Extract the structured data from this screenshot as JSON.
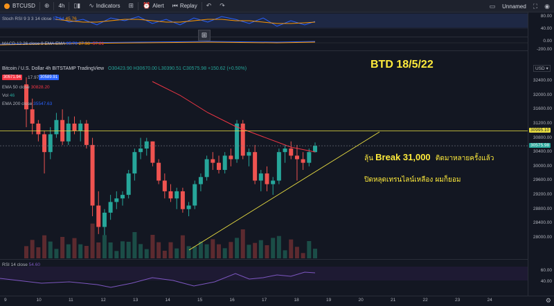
{
  "toolbar": {
    "symbol": "BTCUSD",
    "interval": "4h",
    "indicators": "Indicators",
    "alert": "Alert",
    "replay": "Replay",
    "layout_name": "Unnamed"
  },
  "stoch": {
    "legend": "Stoch RSI 9 3 3 14 close",
    "k": "51.64",
    "d": "45.76",
    "scale": [
      "80.00",
      "40.00"
    ]
  },
  "macd": {
    "legend": "MACD 12 26 close 9 EMA EMA",
    "v1": "95.76",
    "v2": "27.98",
    "v3": "-57.81",
    "scale": [
      "0.00",
      "-200.00"
    ]
  },
  "main": {
    "title": "Bitcoin / U.S. Dollar  4h  BITSTAMP  TradingView",
    "ohlc": "O30423.90 H30670.00 L30390.51 C30575.98 +150.62 (+0.50%)",
    "bid": "30571.94",
    "spread": "17.97",
    "ask": "30589.91",
    "ema50": "EMA 50 close",
    "ema50_val": "30828.20",
    "vol": "Vol",
    "vol_val": "46",
    "ema200": "EMA 200 close",
    "ema200_val": "35547.63"
  },
  "price_scale": {
    "currency": "USD",
    "labels": [
      "32400.00",
      "32000.00",
      "31600.00",
      "31200.00",
      "30800.00",
      "30400.00",
      "30000.00",
      "29600.00",
      "29200.00",
      "28800.00",
      "28400.00",
      "28000.00"
    ],
    "tag_resistance": "30995.10",
    "tag_last": "30575.98"
  },
  "rsi": {
    "legend": "RSI 14 close",
    "value": "54.60",
    "scale": [
      "60.00",
      "40.00"
    ]
  },
  "time_labels": [
    "9",
    "10",
    "11",
    "12",
    "13",
    "14",
    "15",
    "16",
    "17",
    "18",
    "19",
    "20",
    "21",
    "22",
    "23",
    "24"
  ],
  "annotations": {
    "title": "BTD 18/5/22",
    "line1_prefix": "ลุ้น",
    "line1_bold": "Break 31,000",
    "line1_suffix": "ติดมาหลายครั้งแล้ว",
    "line2": "ปิดหลุดเทรนไลน์เหลือง ผมก็ยอม"
  },
  "candles": [
    [
      32300,
      32500,
      31100,
      31600
    ],
    [
      31600,
      31900,
      30900,
      31200
    ],
    [
      31200,
      31300,
      30700,
      30900
    ],
    [
      30900,
      31000,
      29800,
      30400
    ],
    [
      30400,
      31100,
      30200,
      30900
    ],
    [
      30900,
      31500,
      30800,
      31300
    ],
    [
      31300,
      31600,
      30600,
      30700
    ],
    [
      30700,
      31400,
      30600,
      31200
    ],
    [
      31200,
      31400,
      30900,
      31000
    ],
    [
      31000,
      31300,
      30700,
      31200
    ],
    [
      31200,
      31300,
      30500,
      30600
    ],
    [
      30600,
      30800,
      28600,
      28900
    ],
    [
      28900,
      29300,
      28100,
      28300
    ],
    [
      28300,
      28800,
      27900,
      28700
    ],
    [
      28700,
      29200,
      28500,
      29000
    ],
    [
      29000,
      29300,
      28800,
      29100
    ],
    [
      29100,
      29300,
      28900,
      29200
    ],
    [
      29200,
      29900,
      29100,
      29800
    ],
    [
      29800,
      30500,
      29600,
      30400
    ],
    [
      30400,
      30800,
      30200,
      30500
    ],
    [
      30500,
      30800,
      30300,
      30700
    ],
    [
      30700,
      30700,
      30000,
      30100
    ],
    [
      30100,
      30200,
      29500,
      29600
    ],
    [
      29600,
      29800,
      29100,
      29300
    ],
    [
      29300,
      29500,
      29000,
      29100
    ],
    [
      29100,
      29400,
      28800,
      29300
    ],
    [
      29300,
      29400,
      28700,
      28800
    ],
    [
      28800,
      29000,
      28600,
      28900
    ],
    [
      28900,
      29600,
      28800,
      29500
    ],
    [
      29500,
      29800,
      29300,
      29700
    ],
    [
      29700,
      30300,
      29600,
      30200
    ],
    [
      30200,
      30400,
      29900,
      30100
    ],
    [
      30100,
      30300,
      29800,
      29900
    ],
    [
      29900,
      30400,
      29800,
      30300
    ],
    [
      30300,
      30500,
      30000,
      30200
    ],
    [
      30200,
      31300,
      30100,
      31200
    ],
    [
      31200,
      31300,
      30200,
      30300
    ],
    [
      30300,
      30500,
      30000,
      30400
    ],
    [
      30400,
      30600,
      29500,
      29600
    ],
    [
      29600,
      29900,
      29300,
      29800
    ],
    [
      29800,
      30000,
      29300,
      29500
    ],
    [
      29500,
      29700,
      29200,
      29600
    ],
    [
      29600,
      30500,
      29500,
      30400
    ],
    [
      30400,
      30600,
      30100,
      30500
    ],
    [
      30500,
      30700,
      30200,
      30300
    ],
    [
      30300,
      30600,
      29600,
      30200
    ],
    [
      30200,
      30400,
      29900,
      30100
    ],
    [
      30100,
      30500,
      30000,
      30400
    ],
    [
      30400,
      30670,
      30390,
      30576
    ]
  ]
}
